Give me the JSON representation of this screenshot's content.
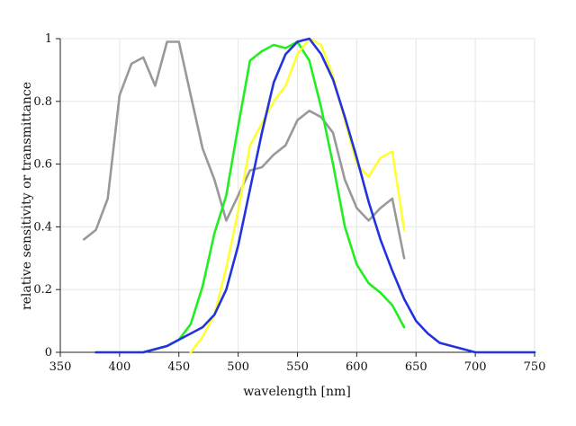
{
  "chart_data": {
    "type": "line",
    "title": "",
    "xlabel": "wavelength [nm]",
    "ylabel": "relative sensitivity or transmittance",
    "xlim": [
      350,
      750
    ],
    "ylim": [
      0,
      1
    ],
    "xticks": [
      350,
      400,
      450,
      500,
      550,
      600,
      650,
      700,
      750
    ],
    "yticks": [
      0,
      0.2,
      0.4,
      0.6,
      0.8,
      1
    ],
    "ytick_labels": [
      "0",
      "0.2",
      "0.4",
      "0.6",
      "0.8",
      "1"
    ],
    "grid": true,
    "series": [
      {
        "color": "#999999",
        "x": [
          370,
          380,
          390,
          400,
          410,
          420,
          430,
          440,
          450,
          460,
          470,
          480,
          490,
          500,
          510,
          520,
          530,
          540,
          550,
          560,
          570,
          580,
          590,
          600,
          610,
          620,
          630,
          640
        ],
        "y": [
          0.36,
          0.39,
          0.49,
          0.82,
          0.92,
          0.94,
          0.85,
          0.99,
          0.99,
          0.82,
          0.65,
          0.55,
          0.42,
          0.5,
          0.58,
          0.59,
          0.63,
          0.66,
          0.74,
          0.77,
          0.75,
          0.7,
          0.55,
          0.46,
          0.42,
          0.46,
          0.49,
          0.3
        ]
      },
      {
        "color": "#22ee22",
        "x": [
          420,
          430,
          440,
          450,
          460,
          470,
          480,
          490,
          500,
          510,
          520,
          530,
          540,
          550,
          560,
          570,
          580,
          590,
          600,
          610,
          620,
          630,
          640
        ],
        "y": [
          0.0,
          0.01,
          0.02,
          0.04,
          0.09,
          0.21,
          0.38,
          0.5,
          0.72,
          0.93,
          0.96,
          0.98,
          0.97,
          0.99,
          0.93,
          0.78,
          0.6,
          0.4,
          0.28,
          0.22,
          0.19,
          0.15,
          0.08
        ]
      },
      {
        "color": "#ffff33",
        "x": [
          460,
          470,
          480,
          490,
          500,
          510,
          520,
          530,
          540,
          550,
          560,
          570,
          580,
          590,
          600,
          610,
          620,
          630,
          640
        ],
        "y": [
          0.0,
          0.05,
          0.12,
          0.27,
          0.45,
          0.66,
          0.73,
          0.8,
          0.85,
          0.95,
          1.0,
          0.98,
          0.88,
          0.74,
          0.6,
          0.56,
          0.62,
          0.64,
          0.39
        ]
      },
      {
        "color": "#2233dd",
        "x": [
          380,
          390,
          400,
          410,
          420,
          430,
          440,
          450,
          460,
          470,
          480,
          490,
          500,
          510,
          520,
          530,
          540,
          550,
          560,
          570,
          580,
          590,
          600,
          610,
          620,
          630,
          640,
          650,
          660,
          670,
          680,
          690,
          700,
          710,
          720,
          730,
          740,
          750
        ],
        "y": [
          0.0,
          0.0,
          0.0,
          0.0,
          0.0,
          0.01,
          0.02,
          0.04,
          0.06,
          0.08,
          0.12,
          0.2,
          0.34,
          0.52,
          0.7,
          0.86,
          0.95,
          0.99,
          1.0,
          0.95,
          0.87,
          0.75,
          0.62,
          0.48,
          0.36,
          0.26,
          0.17,
          0.1,
          0.06,
          0.03,
          0.02,
          0.01,
          0.0,
          0.0,
          0.0,
          0.0,
          0.0,
          0.0
        ]
      }
    ]
  }
}
